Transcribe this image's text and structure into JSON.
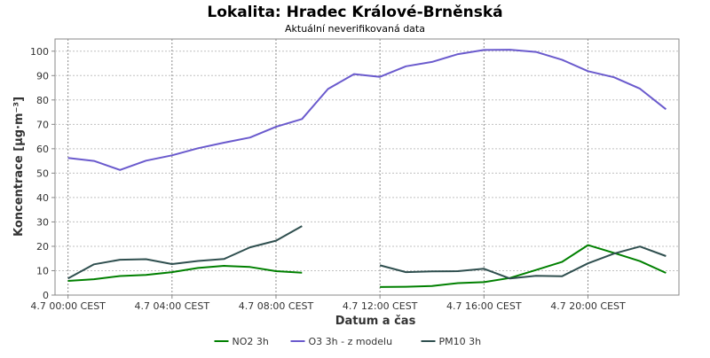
{
  "chart_data": {
    "type": "line",
    "title": "Lokalita: Hradec Králové-Brněnská",
    "subtitle": "Aktuální neverifikovaná data",
    "xlabel": "Datum a čas",
    "ylabel": "Koncentrace [µg·m⁻³]",
    "xlim": [
      -0.5,
      23.5
    ],
    "ylim": [
      0,
      105
    ],
    "yticks": [
      0,
      10,
      20,
      30,
      40,
      50,
      60,
      70,
      80,
      90,
      100
    ],
    "xticks": [
      {
        "x": 0,
        "label": "4.7 00:00 CEST"
      },
      {
        "x": 4,
        "label": "4.7 04:00 CEST"
      },
      {
        "x": 8,
        "label": "4.7 08:00 CEST"
      },
      {
        "x": 12,
        "label": "4.7 12:00 CEST"
      },
      {
        "x": 16,
        "label": "4.7 16:00 CEST"
      },
      {
        "x": 20,
        "label": "4.7 20:00 CEST"
      }
    ],
    "grid": true,
    "legend_position": "bottom",
    "x": [
      0,
      1,
      2,
      3,
      4,
      5,
      6,
      7,
      8,
      9,
      10,
      11,
      12,
      13,
      14,
      15,
      16,
      17,
      18,
      19,
      20,
      21,
      22,
      23
    ],
    "series": [
      {
        "name": "NO2 3h",
        "color": "#008000",
        "values": [
          5.8,
          6.5,
          7.8,
          8.3,
          9.4,
          11.1,
          12.0,
          11.5,
          9.8,
          9.2,
          null,
          null,
          3.3,
          3.4,
          3.7,
          4.9,
          5.3,
          7.0,
          10.3,
          13.6,
          20.5,
          17.3,
          13.9,
          9.1
        ]
      },
      {
        "name": "O3 3h - z modelu",
        "color": "#6a5acd",
        "values": [
          56.2,
          55.0,
          51.3,
          55.1,
          57.3,
          60.2,
          62.5,
          64.6,
          69.0,
          72.2,
          84.5,
          90.6,
          89.5,
          93.8,
          95.6,
          98.8,
          100.5,
          100.6,
          99.7,
          96.5,
          91.8,
          89.3,
          84.6,
          76.2
        ]
      },
      {
        "name": "PM10 3h",
        "color": "#2f4f4f",
        "values": [
          6.8,
          12.6,
          14.5,
          14.7,
          12.7,
          14.0,
          14.8,
          19.6,
          22.3,
          28.3,
          null,
          null,
          12.2,
          9.4,
          9.7,
          9.8,
          10.8,
          6.8,
          7.9,
          7.7,
          13.0,
          17.0,
          19.9,
          16.0
        ]
      }
    ]
  }
}
